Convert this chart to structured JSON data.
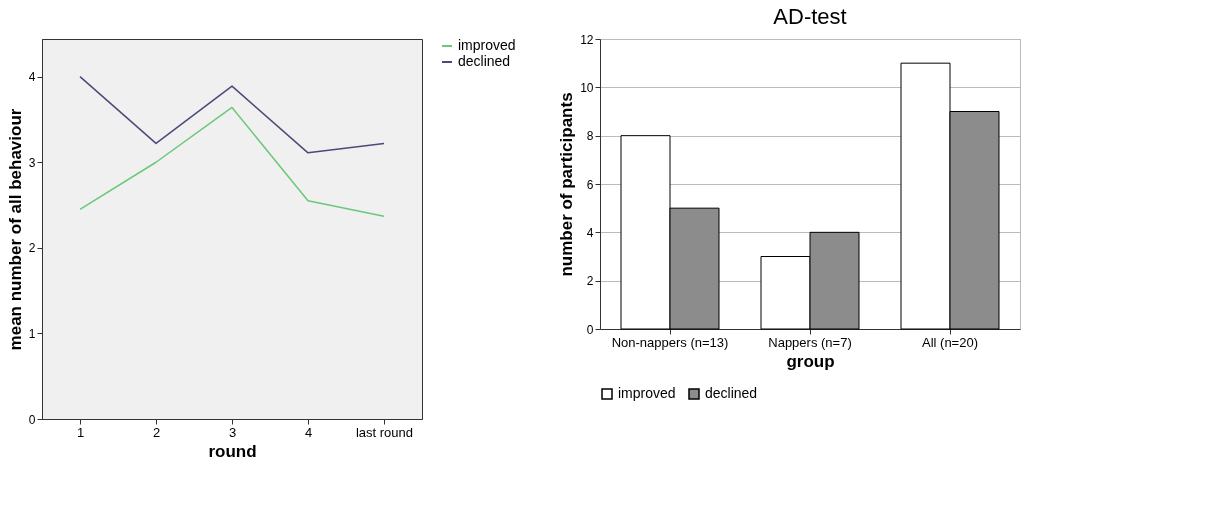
{
  "chart_data": [
    {
      "type": "line",
      "xlabel": "round",
      "ylabel": "mean number of all behaviour",
      "categories": [
        "1",
        "2",
        "3",
        "4",
        "last round"
      ],
      "ylim": [
        0,
        4.44
      ],
      "yticks": [
        0,
        1,
        2,
        3,
        4
      ],
      "grid": false,
      "legend": "top right",
      "series": [
        {
          "name": "improved",
          "color": "#6cc77a",
          "values": [
            2.45,
            3.0,
            3.64,
            2.55,
            2.37
          ]
        },
        {
          "name": "declined",
          "color": "#4a4a7a",
          "values": [
            4.0,
            3.22,
            3.89,
            3.11,
            3.22
          ]
        }
      ]
    },
    {
      "type": "bar",
      "title": "AD-test",
      "xlabel": "group",
      "ylabel": "number of participants",
      "categories": [
        "Non-nappers (n=13)",
        "Nappers (n=7)",
        "All (n=20)"
      ],
      "ylim": [
        0,
        12
      ],
      "yticks": [
        0,
        2,
        4,
        6,
        8,
        10,
        12
      ],
      "grid": "y",
      "legend": "bottom",
      "series": [
        {
          "name": "improved",
          "color": "#ffffff",
          "values": [
            8,
            3,
            11
          ]
        },
        {
          "name": "declined",
          "color": "#8c8c8c",
          "values": [
            5,
            4,
            9
          ]
        }
      ]
    }
  ]
}
